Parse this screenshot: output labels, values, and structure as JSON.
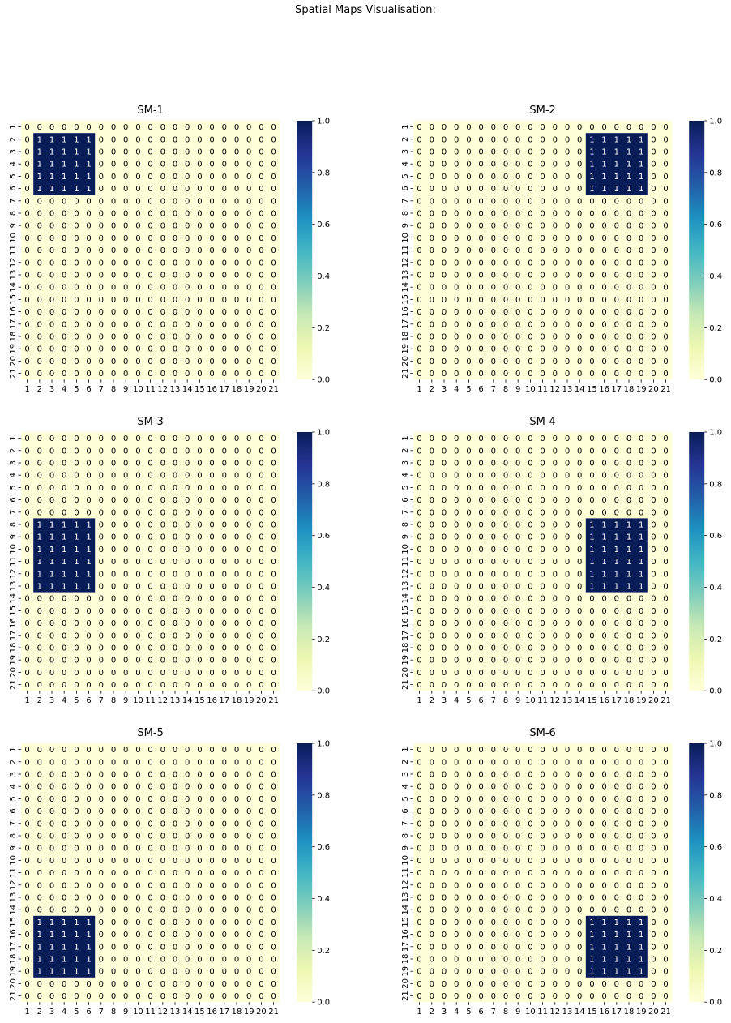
{
  "figure_title": "Spatial Maps Visualisation:",
  "chart_data": [
    {
      "type": "heatmap",
      "title": "SM-1",
      "x_ticks": [
        "1",
        "2",
        "3",
        "4",
        "5",
        "6",
        "7",
        "8",
        "9",
        "10",
        "11",
        "12",
        "13",
        "14",
        "15",
        "16",
        "17",
        "18",
        "19",
        "20",
        "21"
      ],
      "y_ticks": [
        "1",
        "2",
        "3",
        "4",
        "5",
        "6",
        "7",
        "8",
        "9",
        "10",
        "11",
        "12",
        "13",
        "14",
        "15",
        "16",
        "17",
        "18",
        "19",
        "20",
        "21"
      ],
      "ones_region": {
        "rows": [
          2,
          6
        ],
        "cols": [
          2,
          6
        ]
      },
      "other_value": 0,
      "annotated": true,
      "colorbar": {
        "min": 0.0,
        "max": 1.0,
        "ticks": [
          "0.0",
          "0.2",
          "0.4",
          "0.6",
          "0.8",
          "1.0"
        ],
        "colormap": "YlGnBu"
      }
    },
    {
      "type": "heatmap",
      "title": "SM-2",
      "x_ticks": [
        "1",
        "2",
        "3",
        "4",
        "5",
        "6",
        "7",
        "8",
        "9",
        "10",
        "11",
        "12",
        "13",
        "14",
        "15",
        "16",
        "17",
        "18",
        "19",
        "20",
        "21"
      ],
      "y_ticks": [
        "1",
        "2",
        "3",
        "4",
        "5",
        "6",
        "7",
        "8",
        "9",
        "10",
        "11",
        "12",
        "13",
        "14",
        "15",
        "16",
        "17",
        "18",
        "19",
        "20",
        "21"
      ],
      "ones_region": {
        "rows": [
          2,
          6
        ],
        "cols": [
          15,
          19
        ]
      },
      "other_value": 0,
      "annotated": true,
      "colorbar": {
        "min": 0.0,
        "max": 1.0,
        "ticks": [
          "0.0",
          "0.2",
          "0.4",
          "0.6",
          "0.8",
          "1.0"
        ],
        "colormap": "YlGnBu"
      }
    },
    {
      "type": "heatmap",
      "title": "SM-3",
      "x_ticks": [
        "1",
        "2",
        "3",
        "4",
        "5",
        "6",
        "7",
        "8",
        "9",
        "10",
        "11",
        "12",
        "13",
        "14",
        "15",
        "16",
        "17",
        "18",
        "19",
        "20",
        "21"
      ],
      "y_ticks": [
        "1",
        "2",
        "3",
        "4",
        "5",
        "6",
        "7",
        "8",
        "9",
        "10",
        "11",
        "12",
        "13",
        "14",
        "15",
        "16",
        "17",
        "18",
        "19",
        "20",
        "21"
      ],
      "ones_region": {
        "rows": [
          8,
          13
        ],
        "cols": [
          2,
          6
        ]
      },
      "other_value": 0,
      "annotated": true,
      "colorbar": {
        "min": 0.0,
        "max": 1.0,
        "ticks": [
          "0.0",
          "0.2",
          "0.4",
          "0.6",
          "0.8",
          "1.0"
        ],
        "colormap": "YlGnBu"
      }
    },
    {
      "type": "heatmap",
      "title": "SM-4",
      "x_ticks": [
        "1",
        "2",
        "3",
        "4",
        "5",
        "6",
        "7",
        "8",
        "9",
        "10",
        "11",
        "12",
        "13",
        "14",
        "15",
        "16",
        "17",
        "18",
        "19",
        "20",
        "21"
      ],
      "y_ticks": [
        "1",
        "2",
        "3",
        "4",
        "5",
        "6",
        "7",
        "8",
        "9",
        "10",
        "11",
        "12",
        "13",
        "14",
        "15",
        "16",
        "17",
        "18",
        "19",
        "20",
        "21"
      ],
      "ones_region": {
        "rows": [
          8,
          13
        ],
        "cols": [
          15,
          19
        ]
      },
      "other_value": 0,
      "annotated": true,
      "colorbar": {
        "min": 0.0,
        "max": 1.0,
        "ticks": [
          "0.0",
          "0.2",
          "0.4",
          "0.6",
          "0.8",
          "1.0"
        ],
        "colormap": "YlGnBu"
      }
    },
    {
      "type": "heatmap",
      "title": "SM-5",
      "x_ticks": [
        "1",
        "2",
        "3",
        "4",
        "5",
        "6",
        "7",
        "8",
        "9",
        "10",
        "11",
        "12",
        "13",
        "14",
        "15",
        "16",
        "17",
        "18",
        "19",
        "20",
        "21"
      ],
      "y_ticks": [
        "1",
        "2",
        "3",
        "4",
        "5",
        "6",
        "7",
        "8",
        "9",
        "10",
        "11",
        "12",
        "13",
        "14",
        "15",
        "16",
        "17",
        "18",
        "19",
        "20",
        "21"
      ],
      "ones_region": {
        "rows": [
          15,
          19
        ],
        "cols": [
          2,
          6
        ]
      },
      "other_value": 0,
      "annotated": true,
      "colorbar": {
        "min": 0.0,
        "max": 1.0,
        "ticks": [
          "0.0",
          "0.2",
          "0.4",
          "0.6",
          "0.8",
          "1.0"
        ],
        "colormap": "YlGnBu"
      }
    },
    {
      "type": "heatmap",
      "title": "SM-6",
      "x_ticks": [
        "1",
        "2",
        "3",
        "4",
        "5",
        "6",
        "7",
        "8",
        "9",
        "10",
        "11",
        "12",
        "13",
        "14",
        "15",
        "16",
        "17",
        "18",
        "19",
        "20",
        "21"
      ],
      "y_ticks": [
        "1",
        "2",
        "3",
        "4",
        "5",
        "6",
        "7",
        "8",
        "9",
        "10",
        "11",
        "12",
        "13",
        "14",
        "15",
        "16",
        "17",
        "18",
        "19",
        "20",
        "21"
      ],
      "ones_region": {
        "rows": [
          15,
          19
        ],
        "cols": [
          15,
          19
        ]
      },
      "other_value": 0,
      "annotated": true,
      "colorbar": {
        "min": 0.0,
        "max": 1.0,
        "ticks": [
          "0.0",
          "0.2",
          "0.4",
          "0.6",
          "0.8",
          "1.0"
        ],
        "colormap": "YlGnBu"
      }
    }
  ],
  "colors": {
    "low": "#ffffd9",
    "high": "#081d58",
    "text_on_low": "#000000",
    "text_on_high": "#ffffff"
  }
}
